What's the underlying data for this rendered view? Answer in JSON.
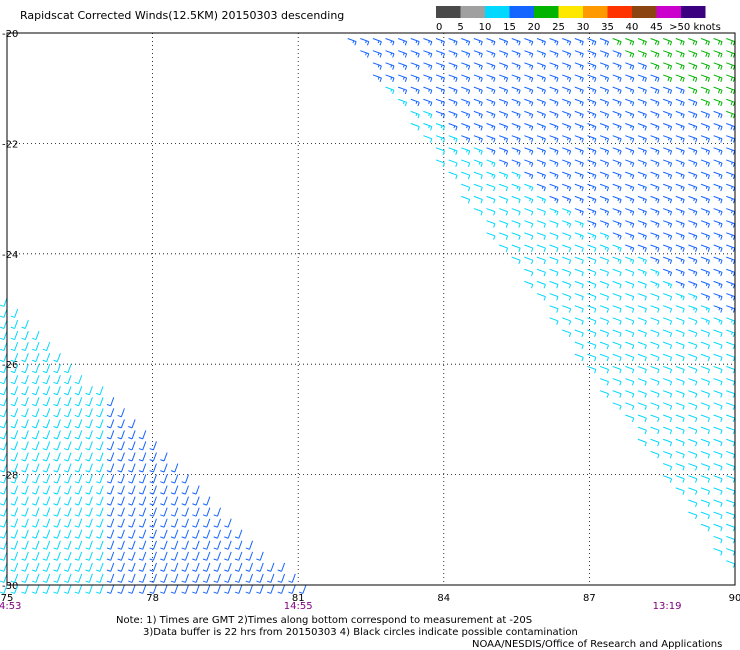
{
  "chart_data": {
    "type": "wind_barbs",
    "title": "Rapidscat Corrected Winds(12.5KM) 20150303 descending",
    "xlim": [
      75,
      90
    ],
    "ylim": [
      -30,
      -20
    ],
    "x_ticks": [
      "75",
      "78",
      "81",
      "84",
      "87",
      "90"
    ],
    "y_ticks": [
      "-20",
      "-22",
      "-24",
      "-26",
      "-28",
      "-30"
    ],
    "time_labels": [
      {
        "lon": 75,
        "text": "14:53"
      },
      {
        "lon": 81,
        "text": "14:55"
      },
      {
        "lon": 88.6,
        "text": "13:19"
      }
    ],
    "colorbar": {
      "labels": [
        "0",
        "5",
        "10",
        "15",
        "20",
        "25",
        "30",
        "35",
        "40",
        "45",
        ">50 knots"
      ],
      "colors": [
        "#4a4a4a",
        "#a0a0a0",
        "#00d8ff",
        "#1464ff",
        "#00b400",
        "#ffe800",
        "#ff9900",
        "#ff3300",
        "#8b4513",
        "#cc00cc",
        "#3b0080"
      ]
    },
    "swaths": [
      {
        "name": "east",
        "polygon": [
          [
            81.9,
            -20
          ],
          [
            90,
            -20
          ],
          [
            90,
            -29.9
          ]
        ],
        "speed_bands_knots": {
          "north_core": 22,
          "south_edge": 12
        },
        "direction_deg": 110
      },
      {
        "name": "west",
        "polygon": [
          [
            75,
            -24.7
          ],
          [
            75,
            -30
          ],
          [
            81.2,
            -30
          ]
        ],
        "speed_bands_knots": {
          "west_edge": 11,
          "east_edge": 13
        },
        "direction_deg": 200
      }
    ]
  },
  "notes": {
    "line1": "Note: 1) Times are GMT 2)Times along bottom correspond to measurement at -20S",
    "line2": "3)Data buffer is 22 hrs from 20150303 4) Black circles indicate possible contamination",
    "line3": "NOAA/NESDIS/Office of Research and Applications"
  }
}
